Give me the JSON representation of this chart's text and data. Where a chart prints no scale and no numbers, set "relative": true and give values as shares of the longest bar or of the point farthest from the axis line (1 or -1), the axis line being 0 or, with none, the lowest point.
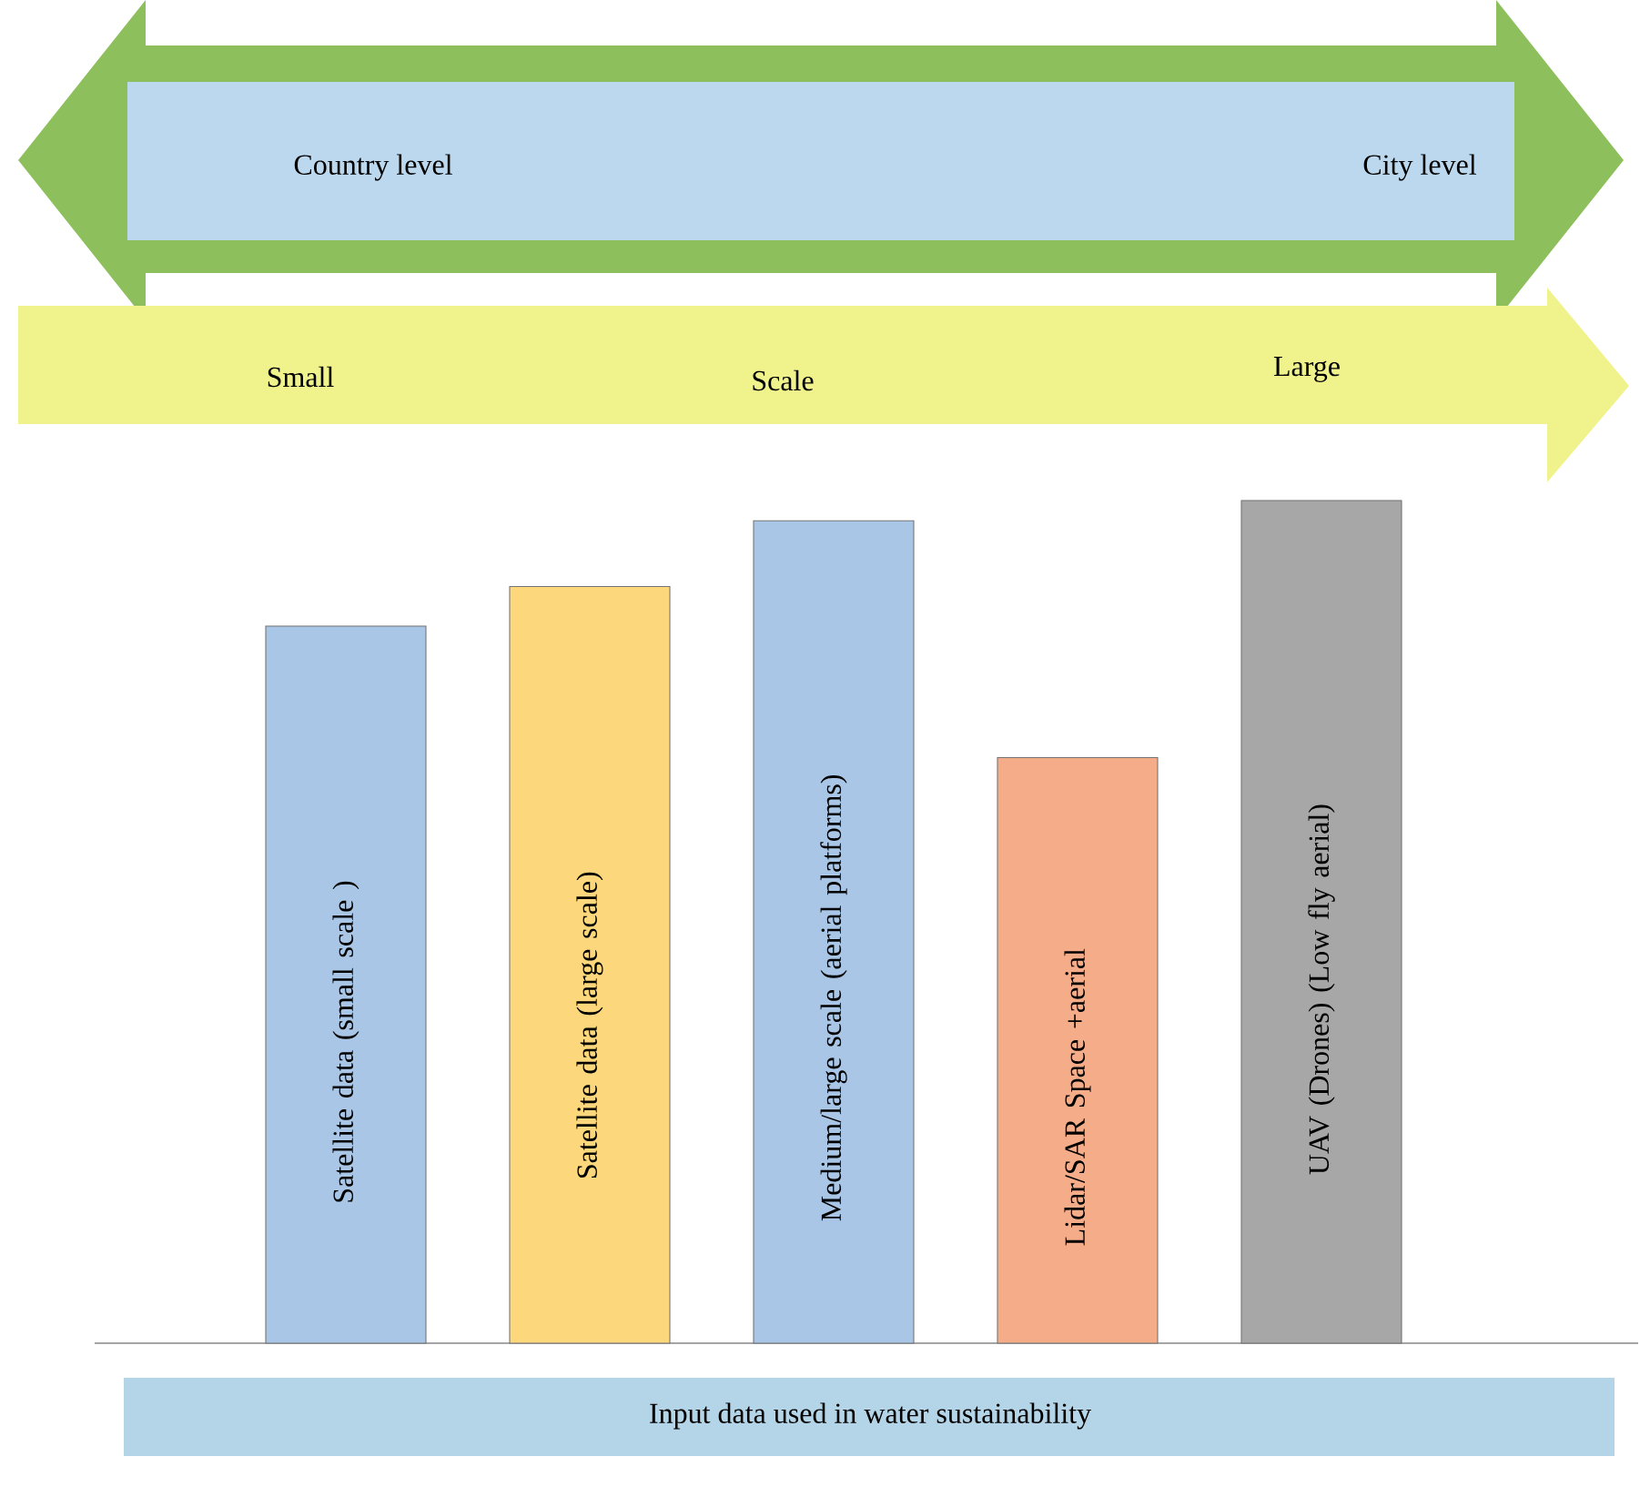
{
  "chart_data": {
    "type": "bar",
    "relative": true,
    "xlabel": "Input data used in water sustainability",
    "categories": [
      "Satellite data (small scale )",
      "Satellite data (large scale)",
      "Medium/large scale (aerial platforms)",
      "Lidar/SAR Space +aerial",
      "UAV (Drones) (Low fly aerial)"
    ],
    "values": [
      0.851,
      0.898,
      0.976,
      0.695,
      1
    ],
    "colors": [
      "#a9c6e6",
      "#fcd77c",
      "#a9c6e6",
      "#f5ad89",
      "#a7a7a7"
    ],
    "annotations": [
      "Country level",
      "City level",
      "Small",
      "Scale",
      "Large"
    ]
  }
}
